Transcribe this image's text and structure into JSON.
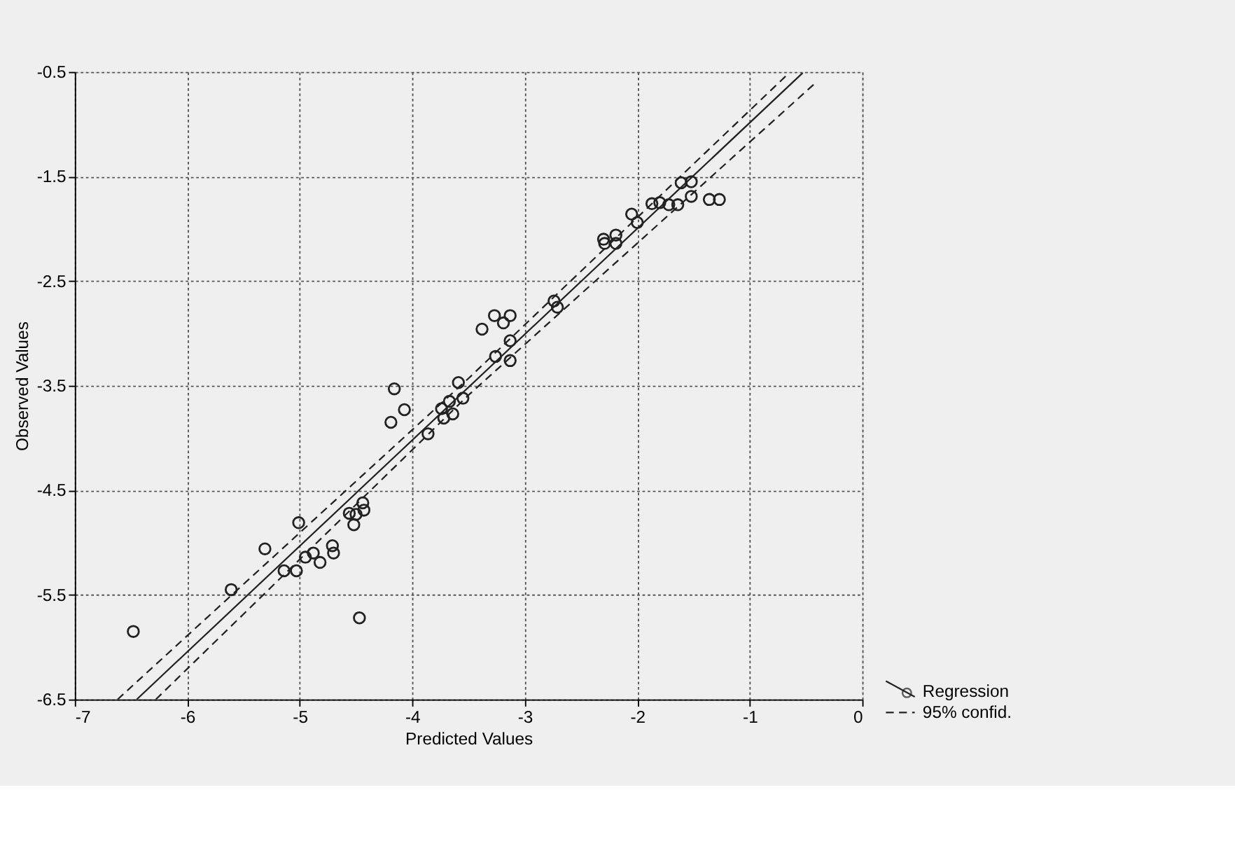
{
  "chart_data": {
    "type": "scatter",
    "xlabel": "Predicted Values",
    "ylabel": "Observed Values",
    "xlim": [
      -7,
      0
    ],
    "ylim": [
      -6.5,
      -0.5
    ],
    "xticks": [
      -7,
      -6,
      -5,
      -4,
      -3,
      -2,
      -1,
      0
    ],
    "yticks": [
      -6.5,
      -5.5,
      -4.5,
      -3.5,
      -2.5,
      -1.5,
      -0.5
    ],
    "grid": true,
    "legend": "bottom right",
    "series": [
      {
        "name": "Regression",
        "marker": "circle",
        "color": "#222222",
        "x": [
          -6.48,
          -5.61,
          -5.31,
          -5.14,
          -5.03,
          -5.01,
          -4.95,
          -4.88,
          -4.82,
          -4.71,
          -4.7,
          -4.56,
          -4.52,
          -4.5,
          -4.44,
          -4.43,
          -4.47,
          -4.19,
          -4.16,
          -4.07,
          -3.86,
          -3.74,
          -3.72,
          -3.67,
          -3.64,
          -3.59,
          -3.55,
          -3.38,
          -3.27,
          -3.19,
          -3.13,
          -3.13,
          -3.26,
          -3.13,
          -2.74,
          -2.71,
          -2.3,
          -2.29,
          -2.19,
          -2.19,
          -2.05,
          -2.0,
          -1.87,
          -1.8,
          -1.72,
          -1.64,
          -1.61,
          -1.52,
          -1.52,
          -1.36,
          -1.27
        ],
        "values": [
          -5.85,
          -5.45,
          -5.06,
          -5.27,
          -5.27,
          -4.81,
          -5.14,
          -5.1,
          -5.19,
          -5.03,
          -5.1,
          -4.72,
          -4.83,
          -4.73,
          -4.62,
          -4.69,
          -5.72,
          -3.85,
          -3.53,
          -3.73,
          -3.96,
          -3.72,
          -3.81,
          -3.65,
          -3.77,
          -3.47,
          -3.62,
          -2.96,
          -2.83,
          -2.9,
          -2.83,
          -3.07,
          -3.22,
          -3.26,
          -2.69,
          -2.75,
          -2.1,
          -2.14,
          -2.06,
          -2.14,
          -1.86,
          -1.94,
          -1.76,
          -1.75,
          -1.77,
          -1.77,
          -1.56,
          -1.55,
          -1.69,
          -1.72,
          -1.72
        ]
      },
      {
        "type": "line",
        "color": "#222222",
        "line_style": "solid",
        "x": [
          -6.45,
          -0.53
        ],
        "values": [
          -6.5,
          -0.51
        ]
      },
      {
        "name": "95% confid.",
        "type": "line",
        "color": "#222222",
        "line_style": "dashed",
        "x": [
          -6.62,
          -3.5,
          -0.67
        ],
        "values": [
          -6.5,
          -3.43,
          -0.53
        ]
      },
      {
        "type": "line",
        "color": "#222222",
        "line_style": "dashed",
        "x": [
          -6.28,
          -3.5,
          -0.4
        ],
        "values": [
          -6.5,
          -3.59,
          -0.59
        ]
      }
    ]
  }
}
